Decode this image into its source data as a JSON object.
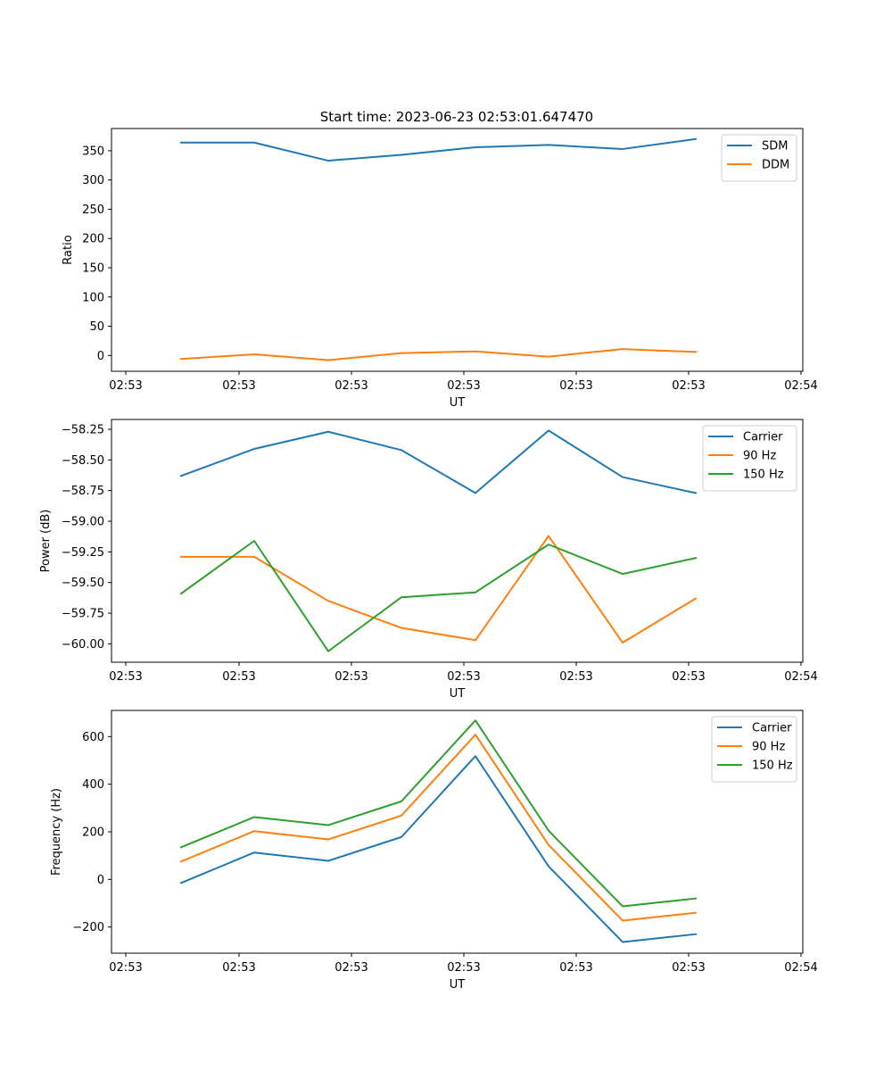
{
  "figure": {
    "title": "Start time: 2023-06-23 02:53:01.647470"
  },
  "colors": {
    "blue": "#1f77b4",
    "orange": "#ff7f0e",
    "green": "#2ca02c"
  },
  "chart_data": [
    {
      "type": "line",
      "title": "Start time: 2023-06-23 02:53:01.647470",
      "xlabel": "UT",
      "ylabel": "Ratio",
      "x_tick_labels": [
        "02:53",
        "02:53",
        "02:53",
        "02:53",
        "02:53",
        "02:53",
        "02:54"
      ],
      "ylim": [
        -27,
        388
      ],
      "y_ticks": [
        0,
        50,
        100,
        150,
        200,
        250,
        300,
        350
      ],
      "y_tick_labels": [
        "0",
        "50",
        "100",
        "150",
        "200",
        "250",
        "300",
        "350"
      ],
      "legend_position": "top-right",
      "grid": false,
      "series": [
        {
          "name": "SDM",
          "color": "#1f77b4",
          "values": [
            364,
            364,
            333,
            343,
            356,
            360,
            353,
            370
          ]
        },
        {
          "name": "DDM",
          "color": "#ff7f0e",
          "values": [
            -6,
            2,
            -8,
            4,
            7,
            -2,
            11,
            6
          ]
        }
      ]
    },
    {
      "type": "line",
      "title": "",
      "xlabel": "UT",
      "ylabel": "Power (dB)",
      "x_tick_labels": [
        "02:53",
        "02:53",
        "02:53",
        "02:53",
        "02:53",
        "02:53",
        "02:54"
      ],
      "ylim": [
        -60.15,
        -58.17
      ],
      "y_ticks": [
        -60.0,
        -59.75,
        -59.5,
        -59.25,
        -59.0,
        -58.75,
        -58.5,
        -58.25
      ],
      "y_tick_labels": [
        "−60.00",
        "−59.75",
        "−59.50",
        "−59.25",
        "−59.00",
        "−58.75",
        "−58.50",
        "−58.25"
      ],
      "legend_position": "top-right",
      "grid": false,
      "series": [
        {
          "name": "Carrier",
          "color": "#1f77b4",
          "values": [
            -58.63,
            -58.41,
            -58.27,
            -58.42,
            -58.77,
            -58.26,
            -58.64,
            -58.77
          ]
        },
        {
          "name": "90 Hz",
          "color": "#ff7f0e",
          "values": [
            -59.29,
            -59.29,
            -59.65,
            -59.87,
            -59.97,
            -59.12,
            -59.99,
            -59.63
          ]
        },
        {
          "name": "150 Hz",
          "color": "#2ca02c",
          "values": [
            -59.59,
            -59.16,
            -60.06,
            -59.62,
            -59.58,
            -59.19,
            -59.43,
            -59.3
          ]
        }
      ]
    },
    {
      "type": "line",
      "title": "",
      "xlabel": "UT",
      "ylabel": "Frequency (Hz)",
      "x_tick_labels": [
        "02:53",
        "02:53",
        "02:53",
        "02:53",
        "02:53",
        "02:53",
        "02:54"
      ],
      "ylim": [
        -310,
        710
      ],
      "y_ticks": [
        -200,
        0,
        200,
        400,
        600
      ],
      "y_tick_labels": [
        "−200",
        "0",
        "200",
        "400",
        "600"
      ],
      "legend_position": "top-right",
      "grid": false,
      "series": [
        {
          "name": "Carrier",
          "color": "#1f77b4",
          "values": [
            -15,
            113,
            78,
            178,
            518,
            55,
            -263,
            -230
          ]
        },
        {
          "name": "90 Hz",
          "color": "#ff7f0e",
          "values": [
            75,
            203,
            168,
            268,
            608,
            145,
            -173,
            -140
          ]
        },
        {
          "name": "150 Hz",
          "color": "#2ca02c",
          "values": [
            135,
            262,
            228,
            328,
            668,
            205,
            -113,
            -80
          ]
        }
      ]
    }
  ]
}
